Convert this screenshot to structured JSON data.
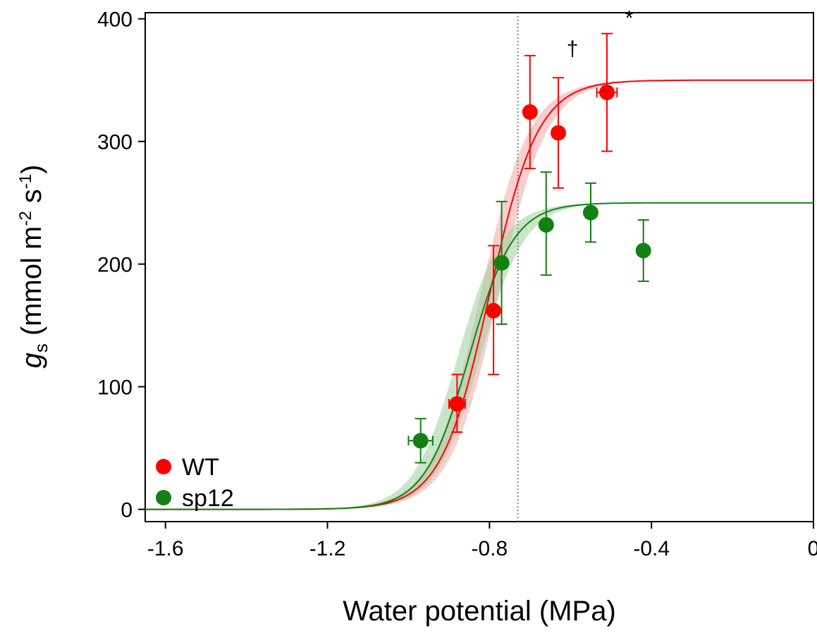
{
  "chart_data": {
    "type": "scatter",
    "xlabel": "Water potential (MPa)",
    "ylabel": {
      "symbol": "g",
      "symbol_sub": "s",
      "unit_open": " (mmol m",
      "exp1": "-2",
      "unit_mid": " s",
      "exp2": "-1",
      "unit_close": ")"
    },
    "xlim": [
      -1.65,
      0.0
    ],
    "ylim": [
      -10,
      405
    ],
    "x_ticks": [
      -1.6,
      -1.2,
      -0.8,
      -0.4,
      0
    ],
    "x_tick_labels": [
      "-1.6",
      "-1.2",
      "-0.8",
      "-0.4",
      "0"
    ],
    "y_ticks": [
      0,
      100,
      200,
      300,
      400
    ],
    "y_tick_labels": [
      "0",
      "100",
      "200",
      "300",
      "400"
    ],
    "reference_line_x": -0.73,
    "legend_position": "bottom-left",
    "series": [
      {
        "name": "WT",
        "color": "#ff0000",
        "band_color": "#f4a6a6",
        "fit": {
          "max": 350,
          "x50": -0.8,
          "slope": 0.06,
          "band_halfwidth": 0.022
        },
        "points": [
          {
            "x": -0.88,
            "y": 86,
            "yerr_low": 63,
            "yerr_high": 110,
            "xerr": 0.02
          },
          {
            "x": -0.79,
            "y": 162,
            "yerr_low": 110,
            "yerr_high": 215,
            "xerr": 0
          },
          {
            "x": -0.7,
            "y": 324,
            "yerr_low": 278,
            "yerr_high": 370,
            "xerr": 0
          },
          {
            "x": -0.63,
            "y": 307,
            "yerr_low": 262,
            "yerr_high": 352,
            "xerr": 0
          },
          {
            "x": -0.51,
            "y": 340,
            "yerr_low": 292,
            "yerr_high": 388,
            "xerr": 0.025
          }
        ]
      },
      {
        "name": "sp12",
        "color": "#128012",
        "band_color": "#9ccf9c",
        "fit": {
          "max": 250,
          "x50": -0.85,
          "slope": 0.055,
          "band_halfwidth": 0.028
        },
        "points": [
          {
            "x": -0.97,
            "y": 56,
            "yerr_low": 38,
            "yerr_high": 74,
            "xerr": 0.03
          },
          {
            "x": -0.77,
            "y": 201,
            "yerr_low": 151,
            "yerr_high": 251,
            "xerr": 0
          },
          {
            "x": -0.66,
            "y": 232,
            "yerr_low": 191,
            "yerr_high": 275,
            "xerr": 0
          },
          {
            "x": -0.55,
            "y": 242,
            "yerr_low": 218,
            "yerr_high": 266,
            "xerr": 0
          },
          {
            "x": -0.42,
            "y": 211,
            "yerr_low": 186,
            "yerr_high": 236,
            "xerr": 0
          }
        ]
      }
    ],
    "annotations": [
      {
        "text": "†",
        "x": -0.595,
        "y": 370
      },
      {
        "text": "*",
        "x": -0.455,
        "y": 395
      }
    ]
  }
}
